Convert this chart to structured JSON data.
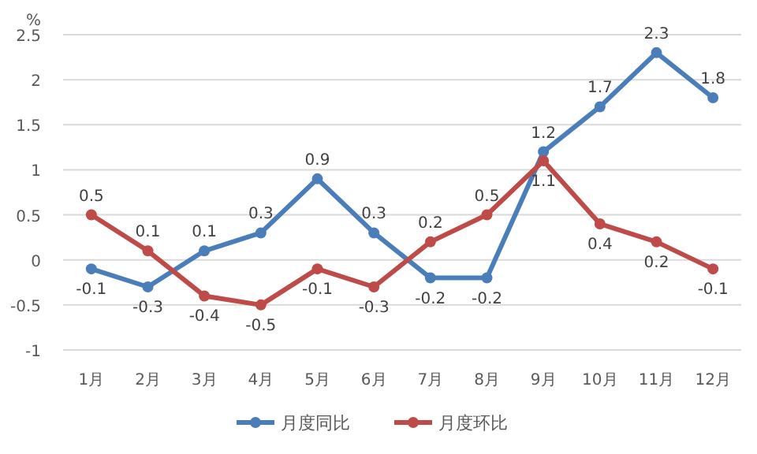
{
  "chart_data": {
    "type": "line",
    "ylabel": "%",
    "categories": [
      "1月",
      "2月",
      "3月",
      "4月",
      "5月",
      "6月",
      "7月",
      "8月",
      "9月",
      "10月",
      "11月",
      "12月"
    ],
    "series": [
      {
        "name": "月度同比",
        "color": "#4a7ebb",
        "values": [
          -0.1,
          -0.3,
          0.1,
          0.3,
          0.9,
          0.3,
          -0.2,
          -0.2,
          1.2,
          1.7,
          2.3,
          1.8
        ]
      },
      {
        "name": "月度环比",
        "color": "#be4b48",
        "values": [
          0.5,
          0.1,
          -0.4,
          -0.5,
          -0.1,
          -0.3,
          0.2,
          0.5,
          1.1,
          0.4,
          0.2,
          -0.1
        ]
      }
    ],
    "ylim": [
      -1,
      2.5
    ],
    "yticks": [
      -1,
      -0.5,
      0,
      0.5,
      1,
      1.5,
      2,
      2.5
    ],
    "grid": "y",
    "legend": "bottom",
    "marker": "circle",
    "line_style": "solid",
    "data_labels": true
  }
}
